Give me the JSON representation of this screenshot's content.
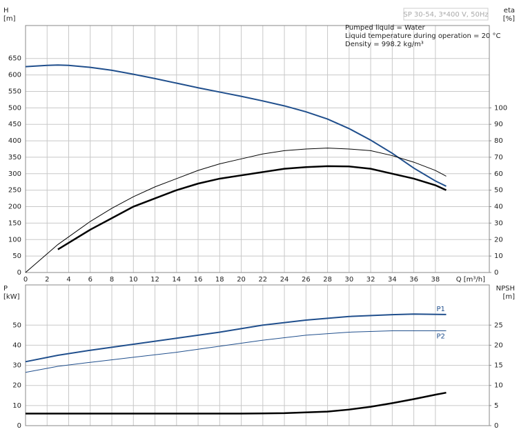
{
  "chart_data": [
    {
      "type": "line",
      "ylabel": [
        "H",
        "[m]"
      ],
      "y2label": [
        "eta",
        "[%]"
      ],
      "xlabel": "Q [m³/h]",
      "model": "SP 30-54, 3*400 V, 50Hz",
      "annotations": [
        "Pumped liquid = Water",
        "Liquid temperature during operation = 20 °C",
        "Density = 998.2 kg/m³"
      ],
      "xlim": [
        0,
        43
      ],
      "xticks": [
        0,
        2,
        4,
        6,
        8,
        10,
        12,
        14,
        16,
        18,
        20,
        22,
        24,
        26,
        28,
        30,
        32,
        34,
        36,
        38
      ],
      "ylim": [
        0,
        750
      ],
      "yticks": [
        0,
        50,
        100,
        150,
        200,
        250,
        300,
        350,
        400,
        450,
        500,
        550,
        600,
        650
      ],
      "y2lim": [
        0,
        150
      ],
      "y2ticks": [
        0,
        10,
        20,
        30,
        40,
        50,
        60,
        70,
        80,
        90,
        100
      ],
      "grid": true,
      "series": [
        {
          "color": "#1f4e8c",
          "width": 2,
          "x": [
            0,
            2,
            3,
            4,
            6,
            8,
            10,
            12,
            14,
            16,
            18,
            20,
            22,
            24,
            26,
            28,
            30,
            32,
            34,
            36,
            38,
            39
          ],
          "values": [
            625,
            629,
            630,
            629,
            623,
            614,
            602,
            589,
            575,
            561,
            548,
            535,
            521,
            506,
            488,
            466,
            437,
            402,
            362,
            317,
            278,
            262
          ]
        },
        {
          "color": "#000000",
          "width": 1,
          "axis": "y2",
          "x": [
            0,
            3,
            6,
            8,
            10,
            12,
            14,
            16,
            18,
            20,
            22,
            24,
            26,
            28,
            30,
            32,
            34,
            36,
            38,
            39
          ],
          "values": [
            0,
            17,
            31,
            39,
            46,
            52,
            57,
            62,
            66,
            69,
            72,
            74,
            75,
            75.6,
            75,
            74,
            71,
            67,
            62,
            58.5
          ]
        },
        {
          "color": "#000000",
          "width": 2.5,
          "axis": "y2",
          "x": [
            3,
            6,
            8,
            10,
            12,
            14,
            16,
            18,
            20,
            22,
            24,
            26,
            28,
            30,
            32,
            34,
            36,
            38,
            39
          ],
          "values": [
            14,
            26,
            33,
            40,
            45,
            50,
            54,
            57,
            59,
            61,
            63,
            64,
            64.6,
            64.4,
            63,
            60,
            57,
            53,
            50
          ]
        }
      ]
    },
    {
      "type": "line",
      "ylabel": [
        "P",
        "[kW]"
      ],
      "y2label": [
        "NPSH",
        "[m]"
      ],
      "xlim": [
        0,
        43
      ],
      "ylim": [
        0,
        70
      ],
      "yticks": [
        0,
        10,
        20,
        30,
        40,
        50
      ],
      "y2lim": [
        0,
        35
      ],
      "y2ticks": [
        0,
        5,
        10,
        15,
        20,
        25
      ],
      "grid": true,
      "series": [
        {
          "name": "P1",
          "color": "#1f4e8c",
          "width": 2,
          "x": [
            0,
            3,
            6,
            10,
            14,
            18,
            22,
            26,
            30,
            34,
            36,
            39
          ],
          "values": [
            31.8,
            35,
            37.5,
            40.5,
            43.5,
            46.5,
            50,
            52.5,
            54.3,
            55.2,
            55.5,
            55.3
          ]
        },
        {
          "name": "P2",
          "color": "#1f4e8c",
          "width": 1,
          "x": [
            0,
            3,
            6,
            10,
            14,
            18,
            22,
            26,
            30,
            34,
            39
          ],
          "values": [
            26.5,
            29.5,
            31.5,
            34,
            36.5,
            39.5,
            42.5,
            45,
            46.5,
            47.2,
            47.2
          ]
        },
        {
          "color": "#000000",
          "width": 2.5,
          "axis": "y2",
          "x": [
            0,
            3,
            10,
            20,
            24,
            28,
            30,
            32,
            34,
            36,
            38,
            39
          ],
          "values": [
            3,
            3,
            3,
            3,
            3.1,
            3.5,
            4,
            4.7,
            5.6,
            6.6,
            7.7,
            8.2
          ]
        }
      ]
    }
  ]
}
